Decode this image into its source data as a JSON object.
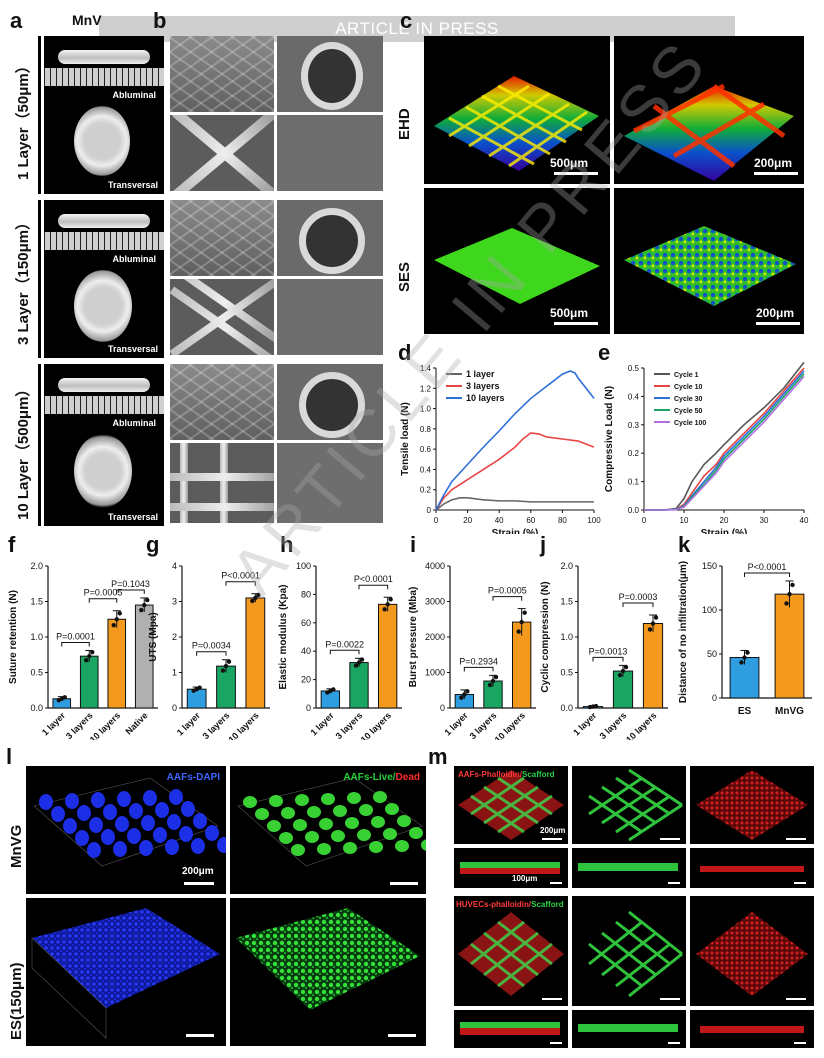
{
  "banner": "ARTICLE IN PRESS",
  "watermark": "ARTICLE IN PRESS",
  "panels": {
    "a": "a",
    "b": "b",
    "c": "c",
    "d": "d",
    "e": "e",
    "f": "f",
    "g": "g",
    "h": "h",
    "i": "i",
    "j": "j",
    "k": "k",
    "l": "l",
    "m": "m"
  },
  "panel_a": {
    "header": "MnV",
    "rows": [
      "1 Layer（50μm）",
      "3 Layer（150μm）",
      "10 Layer（500μm）"
    ],
    "abluminal": "Abluminal",
    "transversal": "Transversal"
  },
  "panel_c": {
    "rows": [
      "EHD",
      "SES"
    ],
    "scale": [
      "500μm",
      "200μm"
    ]
  },
  "colors": {
    "blue": "#2f9ee0",
    "green": "#1aa563",
    "orange": "#f39a1e",
    "gray": "#b0b0b0"
  },
  "chart_data": [
    {
      "id": "d",
      "type": "line",
      "xlabel": "Strain (%)",
      "ylabel": "Tensile load (N)",
      "xlim": [
        0,
        100
      ],
      "ylim": [
        0,
        1.4
      ],
      "xticks": [
        0,
        20,
        40,
        60,
        80,
        100
      ],
      "yticks": [
        0,
        0.2,
        0.4,
        0.6,
        0.8,
        1.0,
        1.2,
        1.4
      ],
      "legend": "top-left",
      "series": [
        {
          "name": "1 layer",
          "color": "#666666",
          "x": [
            0,
            5,
            10,
            15,
            20,
            25,
            30,
            40,
            50,
            60,
            70,
            80,
            90,
            100
          ],
          "y": [
            0,
            0.06,
            0.1,
            0.12,
            0.12,
            0.11,
            0.1,
            0.09,
            0.09,
            0.08,
            0.08,
            0.08,
            0.08,
            0.08
          ]
        },
        {
          "name": "3 layers",
          "color": "#e84545",
          "x": [
            0,
            5,
            10,
            20,
            30,
            40,
            50,
            55,
            60,
            65,
            70,
            80,
            90,
            100
          ],
          "y": [
            0,
            0.12,
            0.2,
            0.3,
            0.4,
            0.5,
            0.62,
            0.7,
            0.76,
            0.75,
            0.72,
            0.7,
            0.68,
            0.62
          ]
        },
        {
          "name": "10 layers",
          "color": "#2e6fd8",
          "x": [
            0,
            5,
            10,
            20,
            30,
            40,
            50,
            60,
            70,
            80,
            85,
            88,
            90,
            95,
            100
          ],
          "y": [
            0,
            0.15,
            0.28,
            0.45,
            0.62,
            0.78,
            0.95,
            1.1,
            1.22,
            1.34,
            1.37,
            1.35,
            1.3,
            1.2,
            1.1
          ]
        }
      ]
    },
    {
      "id": "e",
      "type": "line",
      "xlabel": "Strain (%)",
      "ylabel": "Compressive Load (N)",
      "xlim": [
        0,
        40
      ],
      "ylim": [
        0,
        0.5
      ],
      "xticks": [
        0,
        10,
        20,
        30,
        40
      ],
      "yticks": [
        0,
        0.1,
        0.2,
        0.3,
        0.4,
        0.5
      ],
      "legend": "top-left",
      "series": [
        {
          "name": "Cycle 1",
          "color": "#555555",
          "x": [
            0,
            5,
            8,
            10,
            12,
            15,
            18,
            20,
            25,
            30,
            35,
            40
          ],
          "y": [
            0,
            0,
            0.005,
            0.04,
            0.1,
            0.16,
            0.2,
            0.23,
            0.3,
            0.36,
            0.43,
            0.52
          ]
        },
        {
          "name": "Cycle 10",
          "color": "#e84545",
          "x": [
            0,
            5,
            8,
            10,
            12,
            15,
            18,
            20,
            25,
            30,
            35,
            40
          ],
          "y": [
            0,
            0,
            0.002,
            0.02,
            0.06,
            0.12,
            0.16,
            0.2,
            0.27,
            0.34,
            0.42,
            0.5
          ]
        },
        {
          "name": "Cycle 30",
          "color": "#2e6fd8",
          "x": [
            0,
            5,
            8,
            10,
            12,
            15,
            18,
            20,
            25,
            30,
            35,
            40
          ],
          "y": [
            0,
            0,
            0.002,
            0.015,
            0.05,
            0.1,
            0.15,
            0.19,
            0.26,
            0.33,
            0.41,
            0.49
          ]
        },
        {
          "name": "Cycle 50",
          "color": "#1aa563",
          "x": [
            0,
            5,
            8,
            10,
            12,
            15,
            18,
            20,
            25,
            30,
            35,
            40
          ],
          "y": [
            0,
            0,
            0.002,
            0.012,
            0.045,
            0.09,
            0.14,
            0.18,
            0.25,
            0.32,
            0.4,
            0.48
          ]
        },
        {
          "name": "Cycle 100",
          "color": "#b070e0",
          "x": [
            0,
            5,
            8,
            10,
            12,
            15,
            18,
            20,
            25,
            30,
            35,
            40
          ],
          "y": [
            0,
            0,
            0.001,
            0.01,
            0.04,
            0.085,
            0.13,
            0.17,
            0.24,
            0.31,
            0.39,
            0.47
          ]
        }
      ]
    },
    {
      "id": "f",
      "type": "bar",
      "ylabel": "Suture retention (N)",
      "ylim": [
        0,
        2.0
      ],
      "yticks": [
        0,
        0.5,
        1.0,
        1.5,
        2.0
      ],
      "categories": [
        "1 layer",
        "3 layers",
        "10 layers",
        "Native"
      ],
      "values": [
        0.13,
        0.73,
        1.25,
        1.45
      ],
      "errors": [
        0.03,
        0.08,
        0.12,
        0.1
      ],
      "colors": [
        "#2f9ee0",
        "#1aa563",
        "#f39a1e",
        "#b0b0b0"
      ],
      "pvalues": [
        {
          "a": 0,
          "b": 1,
          "text": "P=0.0001"
        },
        {
          "a": 1,
          "b": 2,
          "text": "P=0.0005"
        },
        {
          "a": 2,
          "b": 3,
          "text": "P=0.1043"
        }
      ]
    },
    {
      "id": "g",
      "type": "bar",
      "ylabel": "UTS (Mpa)",
      "ylim": [
        0,
        4
      ],
      "yticks": [
        0,
        1,
        2,
        3,
        4
      ],
      "categories": [
        "1 layer",
        "3 layers",
        "10 layers"
      ],
      "values": [
        0.53,
        1.18,
        3.1
      ],
      "errors": [
        0.06,
        0.18,
        0.12
      ],
      "colors": [
        "#2f9ee0",
        "#1aa563",
        "#f39a1e"
      ],
      "pvalues": [
        {
          "a": 0,
          "b": 1,
          "text": "P=0.0034"
        },
        {
          "a": 1,
          "b": 2,
          "text": "P<0.0001"
        }
      ]
    },
    {
      "id": "h",
      "type": "bar",
      "ylabel": "Elastic modulus (Kpa)",
      "ylim": [
        0,
        100
      ],
      "yticks": [
        0,
        20,
        40,
        60,
        80,
        100
      ],
      "categories": [
        "1 layer",
        "3 layers",
        "10 layers"
      ],
      "values": [
        12,
        32,
        73
      ],
      "errors": [
        1.5,
        3,
        5
      ],
      "colors": [
        "#2f9ee0",
        "#1aa563",
        "#f39a1e"
      ],
      "pvalues": [
        {
          "a": 0,
          "b": 1,
          "text": "P=0.0022"
        },
        {
          "a": 1,
          "b": 2,
          "text": "P<0.0001"
        }
      ]
    },
    {
      "id": "i",
      "type": "bar",
      "ylabel": "Burst pressure (Mba)",
      "ylim": [
        0,
        4000
      ],
      "yticks": [
        0,
        1000,
        2000,
        3000,
        4000
      ],
      "categories": [
        "1 layer",
        "3 layers",
        "10 layers"
      ],
      "values": [
        380,
        760,
        2420
      ],
      "errors": [
        130,
        160,
        380
      ],
      "colors": [
        "#2f9ee0",
        "#1aa563",
        "#f39a1e"
      ],
      "pvalues": [
        {
          "a": 0,
          "b": 1,
          "text": "P=0.2934"
        },
        {
          "a": 1,
          "b": 2,
          "text": "P=0.0005"
        }
      ]
    },
    {
      "id": "j",
      "type": "bar",
      "ylabel": "Cyclic compression (N)",
      "ylim": [
        0,
        2.0
      ],
      "yticks": [
        0,
        0.5,
        1.0,
        1.5,
        2.0
      ],
      "categories": [
        "1 layer",
        "3 layers",
        "10 layers"
      ],
      "values": [
        0.02,
        0.52,
        1.19
      ],
      "errors": [
        0.01,
        0.08,
        0.12
      ],
      "colors": [
        "#2f9ee0",
        "#1aa563",
        "#f39a1e"
      ],
      "pvalues": [
        {
          "a": 0,
          "b": 1,
          "text": "P=0.0013"
        },
        {
          "a": 1,
          "b": 2,
          "text": "P=0.0003"
        }
      ]
    },
    {
      "id": "k",
      "type": "bar",
      "ylabel": "Distance of no infiltration(μm)",
      "ylim": [
        0,
        150
      ],
      "yticks": [
        0,
        50,
        100,
        150
      ],
      "categories": [
        "ES",
        "MnVG"
      ],
      "values": [
        46,
        118
      ],
      "errors": [
        8,
        15
      ],
      "colors": [
        "#2f9ee0",
        "#f39a1e"
      ],
      "pvalues": [
        {
          "a": 0,
          "b": 1,
          "text": "P<0.0001"
        }
      ]
    }
  ],
  "panel_l": {
    "rows": [
      "MnVG",
      "ES(150μm)"
    ],
    "dapi": "AAFs-DAPI",
    "live": "AAFs-Live/",
    "dead": "Dead",
    "scale": "200μm"
  },
  "panel_m": {
    "top_red": "AAFs-Phalloidin/",
    "top_green": "Scafford",
    "bottom_red": "HUVECs-phalloidin/",
    "bottom_green": "Scafford",
    "scale1": "200μm",
    "scale2": "100μm"
  }
}
